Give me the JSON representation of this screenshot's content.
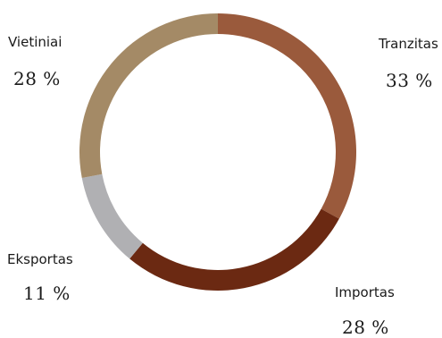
{
  "chart_data": {
    "type": "pie",
    "style": "donut",
    "slices": [
      {
        "label": "Tranzitas",
        "value": 33,
        "value_label": "33 %",
        "color": "#9a5a3c"
      },
      {
        "label": "Importas",
        "value": 28,
        "value_label": "28 %",
        "color": "#6b2912"
      },
      {
        "label": "Eksportas",
        "value": 11,
        "value_label": "11 %",
        "color": "#b0b0b3"
      },
      {
        "label": "Vietiniai",
        "value": 28,
        "value_label": "28 %",
        "color": "#a48a66"
      }
    ]
  }
}
